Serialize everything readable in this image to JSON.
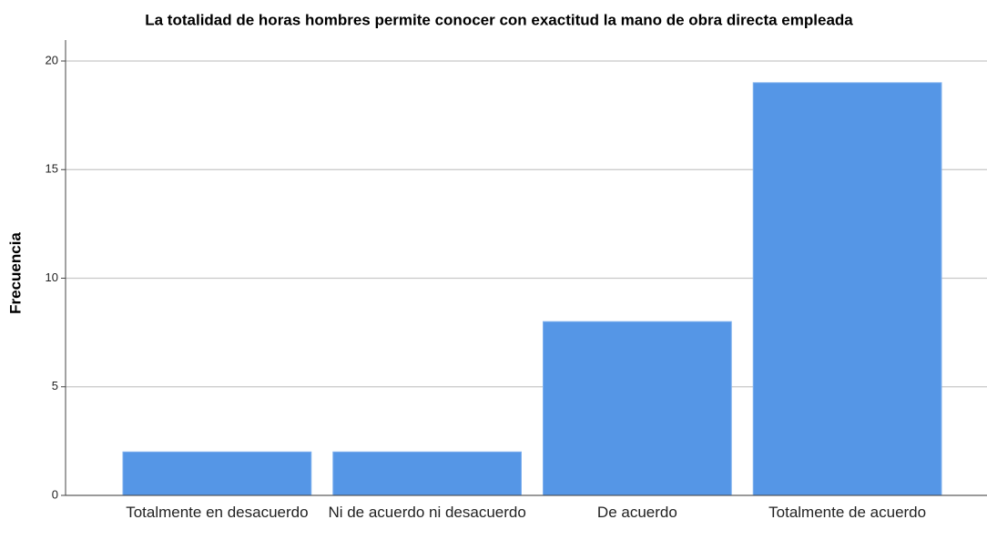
{
  "chart_data": {
    "type": "bar",
    "title": "La totalidad de horas hombres permite conocer con exactitud la mano de obra directa empleada",
    "y_label": "Frecuencia",
    "categories": [
      "Totalmente en desacuerdo",
      "Ni de acuerdo ni desacuerdo",
      "De acuerdo",
      "Totalmente de acuerdo"
    ],
    "values": [
      2,
      2,
      8,
      19
    ],
    "color": "#5596e6",
    "ylim": [
      0,
      20
    ],
    "yticks": [
      0,
      5,
      10,
      15,
      20
    ],
    "grid": true
  }
}
